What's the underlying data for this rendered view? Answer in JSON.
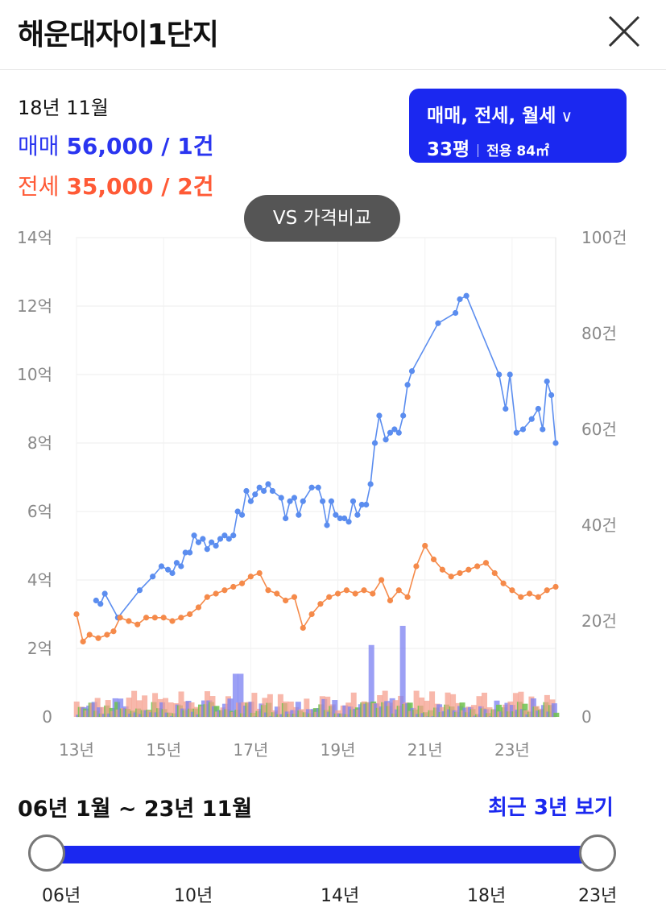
{
  "header": {
    "title": "해운대자이1단지"
  },
  "summary": {
    "date": "18년 11월",
    "sale_label": "매매",
    "sale_value": "56,000 / 1건",
    "lease_label": "전세",
    "lease_value": "35,000 / 2건"
  },
  "filter": {
    "types": "매매, 전세, 월세",
    "size": "33평",
    "area": "전용 84㎡"
  },
  "vs_button": "VS 가격비교",
  "colors": {
    "sale_line": "#5b8def",
    "lease_line": "#f58a4a",
    "sale_bar": "#7b80f2",
    "lease_bar": "#f5a08f",
    "rent_bar": "#6fc24c",
    "accent": "#1b28f0"
  },
  "chart_data": {
    "type": "line",
    "x_ticks": [
      "13년",
      "15년",
      "17년",
      "19년",
      "21년",
      "23년"
    ],
    "y_left_ticks": [
      "0",
      "2억",
      "4억",
      "6억",
      "8억",
      "10억",
      "12억",
      "14억"
    ],
    "y_right_ticks": [
      "0",
      "20건",
      "40건",
      "60건",
      "80건",
      "100건"
    ],
    "y_left_range": [
      0,
      14
    ],
    "y_right_range": [
      0,
      100
    ],
    "x_range": [
      2013.0,
      2024.0
    ],
    "grid": true,
    "series": [
      {
        "name": "매매",
        "unit": "억",
        "points": [
          [
            2013.45,
            3.4
          ],
          [
            2013.55,
            3.3
          ],
          [
            2013.65,
            3.6
          ],
          [
            2013.95,
            2.9
          ],
          [
            2014.45,
            3.7
          ],
          [
            2014.75,
            4.1
          ],
          [
            2014.95,
            4.4
          ],
          [
            2015.1,
            4.3
          ],
          [
            2015.2,
            4.2
          ],
          [
            2015.3,
            4.5
          ],
          [
            2015.4,
            4.4
          ],
          [
            2015.5,
            4.8
          ],
          [
            2015.6,
            4.8
          ],
          [
            2015.7,
            5.3
          ],
          [
            2015.8,
            5.1
          ],
          [
            2015.9,
            5.2
          ],
          [
            2016.0,
            4.9
          ],
          [
            2016.1,
            5.1
          ],
          [
            2016.2,
            5.0
          ],
          [
            2016.3,
            5.2
          ],
          [
            2016.4,
            5.3
          ],
          [
            2016.5,
            5.2
          ],
          [
            2016.6,
            5.3
          ],
          [
            2016.7,
            6.0
          ],
          [
            2016.8,
            5.9
          ],
          [
            2016.9,
            6.6
          ],
          [
            2017.0,
            6.3
          ],
          [
            2017.1,
            6.5
          ],
          [
            2017.2,
            6.7
          ],
          [
            2017.3,
            6.6
          ],
          [
            2017.4,
            6.8
          ],
          [
            2017.5,
            6.6
          ],
          [
            2017.7,
            6.4
          ],
          [
            2017.8,
            5.8
          ],
          [
            2017.9,
            6.3
          ],
          [
            2018.0,
            6.4
          ],
          [
            2018.1,
            5.9
          ],
          [
            2018.2,
            6.3
          ],
          [
            2018.4,
            6.7
          ],
          [
            2018.55,
            6.7
          ],
          [
            2018.65,
            6.3
          ],
          [
            2018.75,
            5.6
          ],
          [
            2018.85,
            6.3
          ],
          [
            2018.95,
            5.9
          ],
          [
            2019.05,
            5.8
          ],
          [
            2019.15,
            5.8
          ],
          [
            2019.25,
            5.7
          ],
          [
            2019.35,
            6.3
          ],
          [
            2019.45,
            5.9
          ],
          [
            2019.55,
            6.2
          ],
          [
            2019.65,
            6.2
          ],
          [
            2019.75,
            6.8
          ],
          [
            2019.85,
            8.0
          ],
          [
            2019.95,
            8.8
          ],
          [
            2020.1,
            8.1
          ],
          [
            2020.2,
            8.3
          ],
          [
            2020.3,
            8.4
          ],
          [
            2020.4,
            8.3
          ],
          [
            2020.5,
            8.8
          ],
          [
            2020.6,
            9.7
          ],
          [
            2020.7,
            10.1
          ],
          [
            2021.3,
            11.5
          ],
          [
            2021.7,
            11.8
          ],
          [
            2021.8,
            12.2
          ],
          [
            2021.95,
            12.3
          ],
          [
            2022.7,
            10.0
          ],
          [
            2022.85,
            9.0
          ],
          [
            2022.95,
            10.0
          ],
          [
            2023.1,
            8.3
          ],
          [
            2023.25,
            8.4
          ],
          [
            2023.45,
            8.7
          ],
          [
            2023.6,
            9.0
          ],
          [
            2023.7,
            8.4
          ],
          [
            2023.8,
            9.8
          ],
          [
            2023.9,
            9.4
          ],
          [
            2024.0,
            8.0
          ]
        ]
      },
      {
        "name": "전세",
        "unit": "억",
        "points": [
          [
            2013.0,
            3.0
          ],
          [
            2013.15,
            2.2
          ],
          [
            2013.3,
            2.4
          ],
          [
            2013.5,
            2.3
          ],
          [
            2013.7,
            2.4
          ],
          [
            2013.85,
            2.5
          ],
          [
            2014.0,
            2.9
          ],
          [
            2014.2,
            2.8
          ],
          [
            2014.4,
            2.7
          ],
          [
            2014.6,
            2.9
          ],
          [
            2014.8,
            2.9
          ],
          [
            2015.0,
            2.9
          ],
          [
            2015.2,
            2.8
          ],
          [
            2015.4,
            2.9
          ],
          [
            2015.6,
            3.0
          ],
          [
            2015.8,
            3.2
          ],
          [
            2016.0,
            3.5
          ],
          [
            2016.2,
            3.6
          ],
          [
            2016.4,
            3.7
          ],
          [
            2016.6,
            3.8
          ],
          [
            2016.8,
            3.9
          ],
          [
            2017.0,
            4.1
          ],
          [
            2017.2,
            4.2
          ],
          [
            2017.4,
            3.7
          ],
          [
            2017.6,
            3.6
          ],
          [
            2017.8,
            3.4
          ],
          [
            2018.0,
            3.5
          ],
          [
            2018.2,
            2.6
          ],
          [
            2018.4,
            3.0
          ],
          [
            2018.6,
            3.3
          ],
          [
            2018.8,
            3.5
          ],
          [
            2019.0,
            3.6
          ],
          [
            2019.2,
            3.7
          ],
          [
            2019.4,
            3.6
          ],
          [
            2019.6,
            3.7
          ],
          [
            2019.8,
            3.6
          ],
          [
            2020.0,
            4.0
          ],
          [
            2020.2,
            3.4
          ],
          [
            2020.4,
            3.7
          ],
          [
            2020.6,
            3.5
          ],
          [
            2020.8,
            4.4
          ],
          [
            2021.0,
            5.0
          ],
          [
            2021.2,
            4.6
          ],
          [
            2021.4,
            4.3
          ],
          [
            2021.6,
            4.1
          ],
          [
            2021.8,
            4.2
          ],
          [
            2022.0,
            4.3
          ],
          [
            2022.2,
            4.4
          ],
          [
            2022.4,
            4.5
          ],
          [
            2022.6,
            4.2
          ],
          [
            2022.8,
            3.9
          ],
          [
            2023.0,
            3.7
          ],
          [
            2023.2,
            3.5
          ],
          [
            2023.4,
            3.6
          ],
          [
            2023.6,
            3.5
          ],
          [
            2023.8,
            3.7
          ],
          [
            2024.0,
            3.8
          ]
        ]
      }
    ],
    "volume_bars_count": [
      {
        "name": "매매",
        "peak_values": [
          2016.7,
          2019.8,
          2020.5
        ],
        "peak_counts": [
          9,
          15,
          19
        ]
      }
    ]
  },
  "range": {
    "label": "06년 1월 ~ 23년 11월",
    "recent_button": "최근 3년 보기"
  },
  "slider_ticks": [
    "06년",
    "10년",
    "14년",
    "18년",
    "23년"
  ]
}
